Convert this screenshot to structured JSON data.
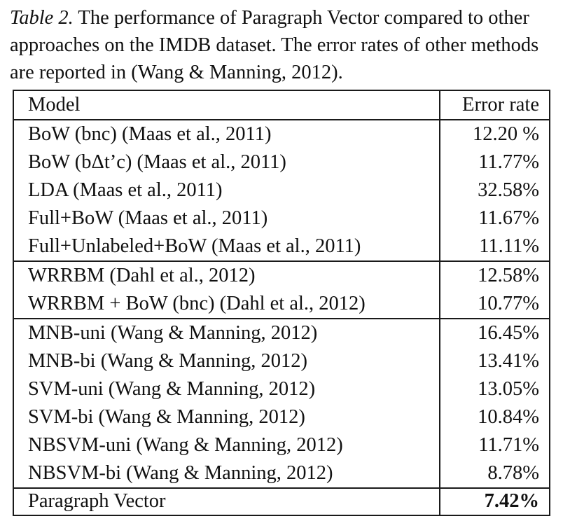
{
  "caption": {
    "label": "Table 2.",
    "text": " The performance of Paragraph Vector compared to other approaches on the IMDB dataset. The error rates of other methods are reported in (Wang & Manning, 2012)."
  },
  "table": {
    "headers": {
      "model": "Model",
      "error_rate": "Error rate"
    },
    "groups": [
      [
        {
          "model": "BoW (bnc) (Maas et al., 2011)",
          "error": "12.20 %"
        },
        {
          "model": "BoW (bΔt’c) (Maas et al., 2011)",
          "error": "11.77%"
        },
        {
          "model": "LDA (Maas et al., 2011)",
          "error": "32.58%"
        },
        {
          "model": "Full+BoW (Maas et al., 2011)",
          "error": "11.67%"
        },
        {
          "model": "Full+Unlabeled+BoW (Maas et al., 2011)",
          "error": "11.11%"
        }
      ],
      [
        {
          "model": "WRRBM (Dahl et al., 2012)",
          "error": "12.58%"
        },
        {
          "model": "WRRBM + BoW (bnc) (Dahl et al., 2012)",
          "error": "10.77%"
        }
      ],
      [
        {
          "model": "MNB-uni (Wang & Manning, 2012)",
          "error": "16.45%"
        },
        {
          "model": "MNB-bi (Wang & Manning, 2012)",
          "error": "13.41%"
        },
        {
          "model": "SVM-uni (Wang & Manning, 2012)",
          "error": "13.05%"
        },
        {
          "model": "SVM-bi (Wang & Manning, 2012)",
          "error": "10.84%"
        },
        {
          "model": "NBSVM-uni (Wang & Manning, 2012)",
          "error": "11.71%"
        },
        {
          "model": "NBSVM-bi (Wang & Manning, 2012)",
          "error": "8.78%"
        }
      ],
      [
        {
          "model": "Paragraph Vector",
          "error": "7.42%",
          "bold": true
        }
      ]
    ]
  }
}
